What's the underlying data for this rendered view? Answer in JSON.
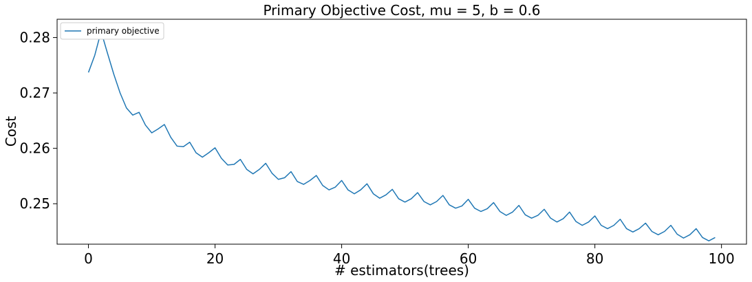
{
  "chart_data": {
    "type": "line",
    "title": "Primary Objective Cost, mu = 5, b = 0.6",
    "xlabel": "# estimators(trees)",
    "ylabel": "Cost",
    "xlim": [
      -4.95,
      103.95
    ],
    "ylim": [
      0.2427,
      0.2833
    ],
    "xticks": [
      0,
      20,
      40,
      60,
      80,
      100
    ],
    "xtick_labels": [
      "0",
      "20",
      "40",
      "60",
      "80",
      "100"
    ],
    "yticks": [
      0.25,
      0.26,
      0.27,
      0.28
    ],
    "ytick_labels": [
      "0.25",
      "0.26",
      "0.27",
      "0.28"
    ],
    "grid": false,
    "legend": {
      "position": "top-left"
    },
    "series": [
      {
        "name": "primary objective",
        "color": "#1f77b4",
        "x": [
          0,
          1,
          2,
          3,
          4,
          5,
          6,
          7,
          8,
          9,
          10,
          11,
          12,
          13,
          14,
          15,
          16,
          17,
          18,
          19,
          20,
          21,
          22,
          23,
          24,
          25,
          26,
          27,
          28,
          29,
          30,
          31,
          32,
          33,
          34,
          35,
          36,
          37,
          38,
          39,
          40,
          41,
          42,
          43,
          44,
          45,
          46,
          47,
          48,
          49,
          50,
          51,
          52,
          53,
          54,
          55,
          56,
          57,
          58,
          59,
          60,
          61,
          62,
          63,
          64,
          65,
          66,
          67,
          68,
          69,
          70,
          71,
          72,
          73,
          74,
          75,
          76,
          77,
          78,
          79,
          80,
          81,
          82,
          83,
          84,
          85,
          86,
          87,
          88,
          89,
          90,
          91,
          92,
          93,
          94,
          95,
          96,
          97,
          98,
          99
        ],
        "y": [
          0.2737,
          0.2768,
          0.2811,
          0.2772,
          0.2734,
          0.27,
          0.2673,
          0.266,
          0.2665,
          0.2642,
          0.2628,
          0.2635,
          0.2643,
          0.262,
          0.2604,
          0.2603,
          0.2611,
          0.2592,
          0.2584,
          0.2592,
          0.2601,
          0.2582,
          0.257,
          0.2571,
          0.258,
          0.2562,
          0.2554,
          0.2562,
          0.2573,
          0.2555,
          0.2544,
          0.2547,
          0.2558,
          0.254,
          0.2535,
          0.2542,
          0.2551,
          0.2533,
          0.2525,
          0.253,
          0.2542,
          0.2525,
          0.2518,
          0.2525,
          0.2536,
          0.2518,
          0.251,
          0.2516,
          0.2526,
          0.2509,
          0.2503,
          0.2509,
          0.252,
          0.2504,
          0.2498,
          0.2504,
          0.2515,
          0.2498,
          0.2492,
          0.2496,
          0.2508,
          0.2492,
          0.2486,
          0.2491,
          0.2502,
          0.2486,
          0.2479,
          0.2485,
          0.2497,
          0.248,
          0.2474,
          0.2479,
          0.249,
          0.2474,
          0.2467,
          0.2473,
          0.2485,
          0.2468,
          0.2461,
          0.2467,
          0.2478,
          0.2461,
          0.2455,
          0.2461,
          0.2472,
          0.2455,
          0.2449,
          0.2455,
          0.2465,
          0.245,
          0.2444,
          0.245,
          0.2461,
          0.2445,
          0.2438,
          0.2444,
          0.2455,
          0.2439,
          0.2433,
          0.2439
        ]
      }
    ]
  }
}
